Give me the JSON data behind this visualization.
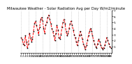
{
  "title": "Milwaukee Weather - Solar Radiation Avg per Day W/m2/minute",
  "title_fontsize": 3.8,
  "line_color": "red",
  "line_style": "--",
  "line_width": 0.7,
  "marker": "s",
  "marker_size": 0.8,
  "marker_color": "black",
  "bg_color": "white",
  "ylim": [
    0,
    7
  ],
  "yticks": [
    1,
    2,
    3,
    4,
    5,
    6,
    7
  ],
  "ylabel_fontsize": 3.2,
  "xlabel_fontsize": 2.8,
  "values": [
    2.5,
    2.1,
    1.5,
    1.2,
    2.8,
    1.8,
    0.8,
    1.5,
    3.2,
    2.5,
    1.8,
    2.2,
    3.5,
    4.8,
    5.2,
    4.5,
    3.8,
    3.0,
    4.2,
    5.5,
    5.8,
    5.2,
    4.0,
    3.2,
    4.5,
    5.0,
    5.8,
    6.2,
    5.5,
    4.8,
    4.0,
    3.5,
    2.8,
    2.0,
    3.2,
    4.5,
    3.8,
    2.5,
    2.2,
    3.0,
    4.2,
    5.0,
    5.5,
    4.8,
    3.5,
    2.8,
    3.2,
    4.0,
    4.8,
    5.2,
    4.5,
    3.8,
    3.0,
    2.5,
    1.8,
    1.2,
    2.0,
    2.8,
    3.5,
    3.0,
    2.2,
    1.5,
    1.0,
    0.5,
    1.2,
    2.0,
    2.8,
    3.5,
    4.0,
    3.5,
    2.8,
    2.0,
    1.5,
    1.0,
    0.8,
    1.5,
    2.2,
    1.8,
    1.2,
    0.8,
    0.5,
    0.8,
    1.2,
    1.8,
    2.5,
    2.0,
    1.5,
    1.0,
    0.8
  ],
  "vgrid_every": 7,
  "vgrid_color": "#aaaaaa",
  "vgrid_linestyle": ":"
}
